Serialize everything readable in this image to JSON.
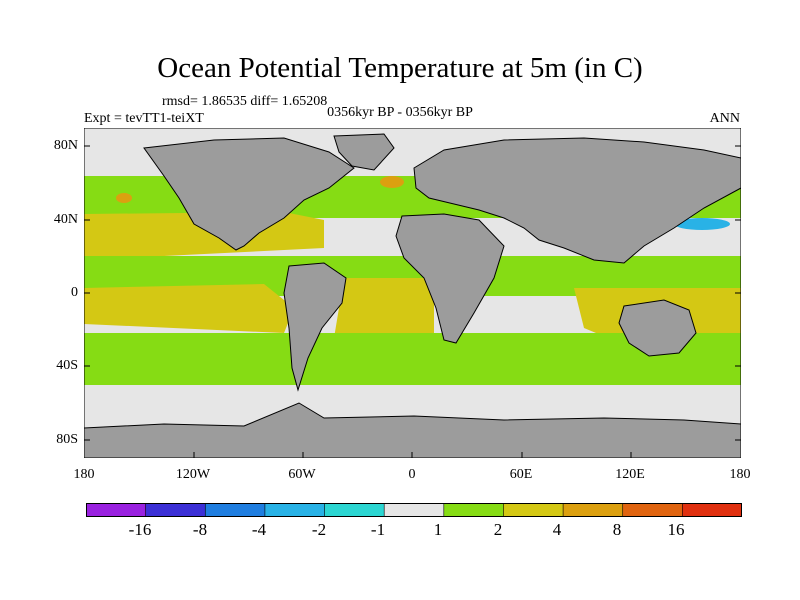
{
  "title": "Ocean Potential Temperature at 5m (in C)",
  "stats": "rmsd= 1.86535 diff= 1.65208",
  "experiment": "Expt = tevTT1-teiXT",
  "period": "0356kyr BP - 0356kyr BP",
  "season": "ANN",
  "y_axis_labels": [
    "80N",
    "40N",
    "0",
    "40S",
    "80S"
  ],
  "x_axis_labels": [
    "180",
    "120W",
    "60W",
    "0",
    "60E",
    "120E",
    "180"
  ],
  "colorbar": {
    "labels": [
      "-16",
      "-8",
      "-4",
      "-2",
      "-1",
      "1",
      "2",
      "4",
      "8",
      "16"
    ],
    "colors": [
      "#9a22e0",
      "#3c30d6",
      "#1f7ee0",
      "#29b2e6",
      "#2cd6d2",
      "#e6e6e6",
      "#86dc14",
      "#d4c814",
      "#dca010",
      "#e06410",
      "#e03010"
    ]
  },
  "colors": {
    "land": "#9c9c9c",
    "neutral": "#e6e6e6",
    "warm1": "#86dc14",
    "warm2": "#d4c814",
    "warm3": "#dca010",
    "cool": "#29b2e6"
  }
}
